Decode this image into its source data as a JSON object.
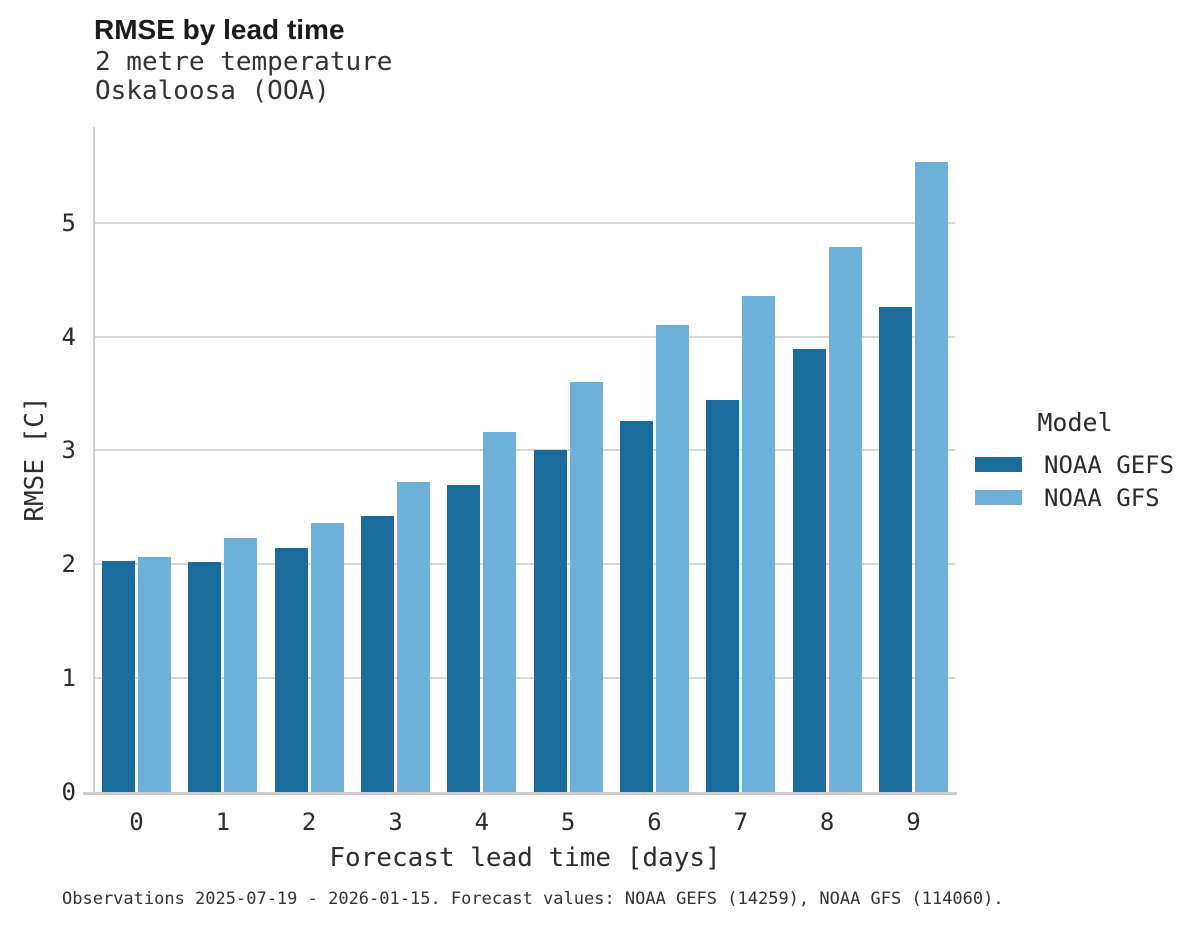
{
  "chart_data": {
    "type": "bar",
    "title": "RMSE by lead time",
    "subtitle_lines": [
      "2 metre temperature",
      "Oskaloosa (OOA)"
    ],
    "xlabel": "Forecast lead time [days]",
    "ylabel": "RMSE [C]",
    "categories": [
      "0",
      "1",
      "2",
      "3",
      "4",
      "5",
      "6",
      "7",
      "8",
      "9"
    ],
    "series": [
      {
        "name": "NOAA GEFS",
        "color": "#1a6c9d",
        "values": [
          2.03,
          2.02,
          2.14,
          2.42,
          2.7,
          3.0,
          3.26,
          3.44,
          3.89,
          4.26
        ]
      },
      {
        "name": "NOAA GFS",
        "color": "#6db0d8",
        "values": [
          2.06,
          2.23,
          2.36,
          2.72,
          3.16,
          3.6,
          4.1,
          4.36,
          4.79,
          5.53
        ]
      }
    ],
    "ylim": [
      0,
      5.84
    ],
    "yticks": [
      0,
      1,
      2,
      3,
      4,
      5
    ],
    "grid": "horizontal",
    "legend_title": "Model",
    "legend_position": "right",
    "caption": "Observations 2025-07-19 - 2026-01-15. Forecast values: NOAA GEFS (14259), NOAA GFS (114060)."
  },
  "colors": {
    "background": "#ffffff",
    "gridline": "#d6d6d6",
    "spine": "#cfcfcf",
    "title_text": "#1a1a1a",
    "body_text": "#2e2e2e",
    "caption_text": "#333333"
  }
}
